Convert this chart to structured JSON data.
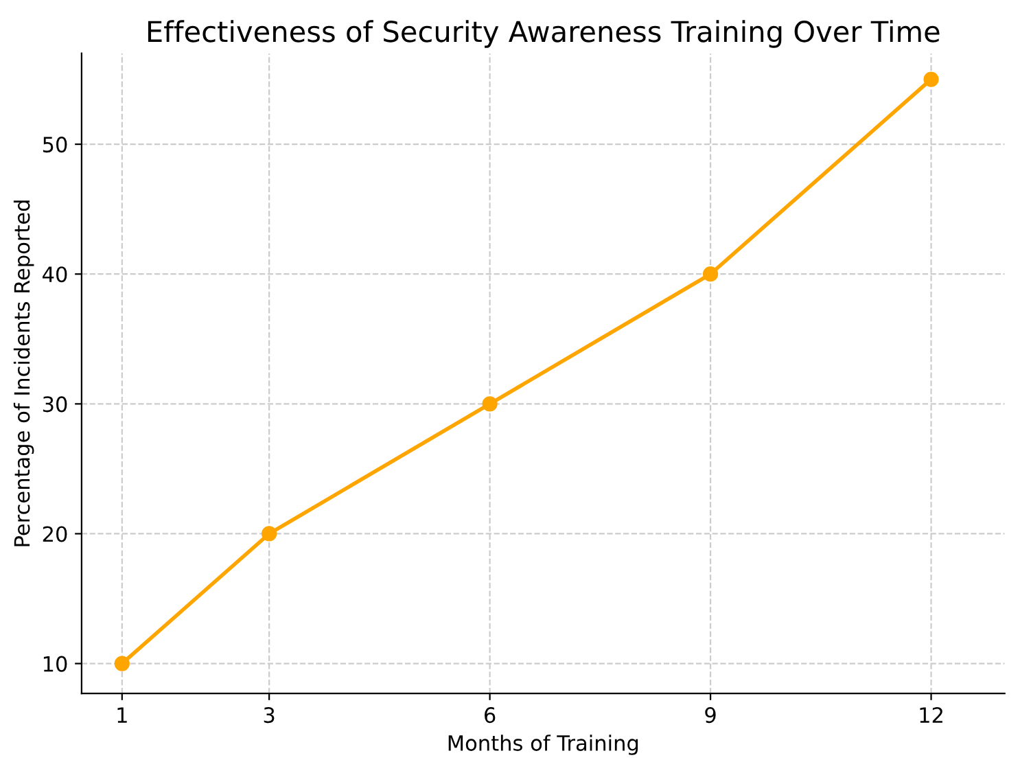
{
  "chart_data": {
    "type": "line",
    "title": "Effectiveness of Security Awareness Training Over Time",
    "xlabel": "Months of Training",
    "ylabel": "Percentage of Incidents Reported",
    "x": [
      1,
      3,
      6,
      9,
      12
    ],
    "series": [
      {
        "color": "#ffa500",
        "values": [
          10,
          20,
          30,
          40,
          55
        ]
      }
    ],
    "xlim": [
      0.45,
      13.0
    ],
    "ylim": [
      7.7,
      57.0
    ],
    "xticks": [
      1,
      3,
      6,
      9,
      12
    ],
    "yticks": [
      10,
      20,
      30,
      40,
      50
    ],
    "grid": true,
    "marker": "circle",
    "line_style": "solid"
  }
}
